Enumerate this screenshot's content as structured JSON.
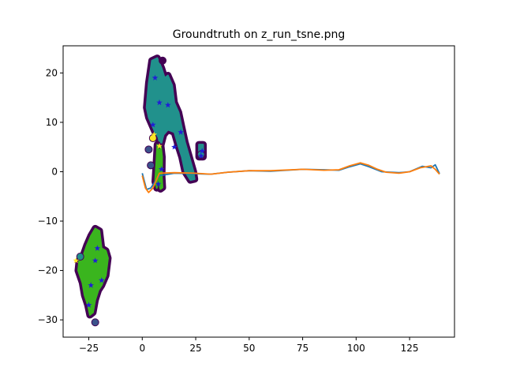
{
  "chart_data": {
    "type": "scatter",
    "title": "Groundtruth on z_run_tsne.png",
    "xlabel": "",
    "ylabel": "",
    "xlim": [
      -37,
      146
    ],
    "ylim": [
      -33.5,
      25.5
    ],
    "xticks": [
      -25,
      0,
      25,
      50,
      75,
      100,
      125
    ],
    "xtick_labels": [
      "−25",
      "0",
      "25",
      "50",
      "75",
      "100",
      "125"
    ],
    "yticks": [
      -30,
      -20,
      -10,
      0,
      10,
      20
    ],
    "ytick_labels": [
      "−30",
      "−20",
      "−10",
      "0",
      "10",
      "20"
    ],
    "grid": false,
    "legend": "none",
    "colors": {
      "outline": "#440154",
      "cluster_teal": "#21918c",
      "cluster_green": "#3ab51e",
      "cluster_blue": "#3b528b",
      "star_blue": "#1f1fd6",
      "star_yellow": "#fde725",
      "line_blue": "#1f77b4",
      "line_orange": "#ff7f0e"
    },
    "clusters": [
      {
        "color": "teal",
        "outline": [
          [
            2,
            13
          ],
          [
            3,
            18
          ],
          [
            4.5,
            22.5
          ],
          [
            7,
            23
          ],
          [
            9,
            21
          ],
          [
            10.5,
            19
          ],
          [
            12,
            19.5
          ],
          [
            14,
            17.5
          ],
          [
            15,
            14
          ],
          [
            17,
            12
          ],
          [
            18.5,
            9
          ],
          [
            20,
            6
          ],
          [
            22,
            3
          ],
          [
            24,
            0
          ],
          [
            24.5,
            -1.5
          ],
          [
            22.5,
            -1.7
          ],
          [
            20,
            0
          ],
          [
            18.5,
            3
          ],
          [
            17,
            5
          ],
          [
            15,
            8
          ],
          [
            12,
            8.5
          ],
          [
            10,
            7.5
          ],
          [
            8.5,
            5
          ],
          [
            7.5,
            7
          ],
          [
            6,
            8
          ],
          [
            4.5,
            9.5
          ],
          [
            3,
            11
          ]
        ]
      },
      {
        "color": "green",
        "outline": [
          [
            7,
            5.5
          ],
          [
            8,
            4
          ],
          [
            8.8,
            5
          ],
          [
            9.3,
            3
          ],
          [
            9.2,
            -1
          ],
          [
            9.5,
            -3.2
          ],
          [
            8.5,
            -3.5
          ],
          [
            7.5,
            -2
          ],
          [
            6.8,
            -3.3
          ],
          [
            6,
            -2
          ],
          [
            6.5,
            1.5
          ]
        ]
      },
      {
        "color": "green",
        "outline": [
          [
            -30,
            -20
          ],
          [
            -29.5,
            -18
          ],
          [
            -28,
            -17.5
          ],
          [
            -26,
            -15
          ],
          [
            -24,
            -13
          ],
          [
            -22,
            -11.5
          ],
          [
            -20,
            -12
          ],
          [
            -19,
            -15.5
          ],
          [
            -17,
            -16
          ],
          [
            -16,
            -17.5
          ],
          [
            -17,
            -21
          ],
          [
            -19,
            -23
          ],
          [
            -20.5,
            -24
          ],
          [
            -22,
            -26
          ],
          [
            -23,
            -28.5
          ],
          [
            -24.5,
            -29
          ],
          [
            -25.5,
            -27
          ],
          [
            -27,
            -25
          ],
          [
            -28,
            -22.5
          ]
        ]
      },
      {
        "color": "teal",
        "outline": [
          [
            26.5,
            5.5
          ],
          [
            28.5,
            5.5
          ],
          [
            28.5,
            3
          ],
          [
            26.5,
            3
          ]
        ]
      }
    ],
    "points": [
      {
        "x": 9.5,
        "y": 22.5,
        "marker": "circle",
        "color": "outline"
      },
      {
        "x": 3,
        "y": 4.5,
        "marker": "circle",
        "color": "blue"
      },
      {
        "x": 4,
        "y": 1.3,
        "marker": "circle",
        "color": "blue"
      },
      {
        "x": 5,
        "y": 6.8,
        "marker": "circle",
        "color": "yellow"
      },
      {
        "x": 27.5,
        "y": 3.5,
        "marker": "circle",
        "color": "teal"
      },
      {
        "x": -29,
        "y": -17.2,
        "marker": "circle",
        "color": "teal"
      },
      {
        "x": -22,
        "y": -30.5,
        "marker": "circle",
        "color": "blue"
      },
      {
        "x": -31,
        "y": -18,
        "marker": "star",
        "color": "yellow"
      },
      {
        "x": 5.5,
        "y": 7.5,
        "marker": "star",
        "color": "yellow"
      },
      {
        "x": 8,
        "y": 5.2,
        "marker": "star",
        "color": "yellow"
      },
      {
        "x": 5,
        "y": 9.5,
        "marker": "star",
        "color": "blue"
      },
      {
        "x": 12,
        "y": 13.5,
        "marker": "star",
        "color": "blue"
      },
      {
        "x": 8,
        "y": 14,
        "marker": "star",
        "color": "blue"
      },
      {
        "x": 15,
        "y": 5,
        "marker": "star",
        "color": "blue"
      },
      {
        "x": 18,
        "y": 8,
        "marker": "star",
        "color": "blue"
      },
      {
        "x": 6,
        "y": 19,
        "marker": "star",
        "color": "blue"
      },
      {
        "x": 28,
        "y": 4.2,
        "marker": "star",
        "color": "blue"
      },
      {
        "x": 27.5,
        "y": 3.2,
        "marker": "star",
        "color": "blue"
      },
      {
        "x": -22,
        "y": -18,
        "marker": "star",
        "color": "blue"
      },
      {
        "x": -19,
        "y": -22,
        "marker": "star",
        "color": "blue"
      },
      {
        "x": -24,
        "y": -23,
        "marker": "star",
        "color": "blue"
      },
      {
        "x": -21,
        "y": -15.5,
        "marker": "star",
        "color": "blue"
      },
      {
        "x": -25,
        "y": -27,
        "marker": "star",
        "color": "blue"
      },
      {
        "x": 9,
        "y": 0.5,
        "marker": "star",
        "color": "blue"
      },
      {
        "x": 7.5,
        "y": -2.5,
        "marker": "star",
        "color": "blue"
      }
    ],
    "series": [
      {
        "color": "line_blue",
        "points": [
          [
            0,
            -0.3
          ],
          [
            2,
            -3.6
          ],
          [
            4,
            -3.3
          ],
          [
            6,
            -2
          ],
          [
            8,
            -0.8
          ],
          [
            15,
            -0.3
          ],
          [
            25,
            -0.4
          ],
          [
            32,
            -0.5
          ],
          [
            40,
            -0.1
          ],
          [
            50,
            0.2
          ],
          [
            60,
            0.1
          ],
          [
            75,
            0.5
          ],
          [
            85,
            0.4
          ],
          [
            92,
            0.3
          ],
          [
            97,
            1.0
          ],
          [
            102,
            1.6
          ],
          [
            106,
            1.0
          ],
          [
            112,
            0
          ],
          [
            120,
            -0.2
          ],
          [
            125,
            0
          ],
          [
            131,
            1.1
          ],
          [
            135,
            0.8
          ],
          [
            137,
            1.4
          ],
          [
            139,
            -0.4
          ]
        ]
      },
      {
        "color": "line_orange",
        "points": [
          [
            0,
            -0.8
          ],
          [
            1.5,
            -3.3
          ],
          [
            3,
            -4.2
          ],
          [
            5,
            -3.3
          ],
          [
            8,
            -0.3
          ],
          [
            15,
            -0.2
          ],
          [
            25,
            -0.3
          ],
          [
            32,
            -0.5
          ],
          [
            40,
            -0.1
          ],
          [
            50,
            0.2
          ],
          [
            60,
            0.2
          ],
          [
            75,
            0.5
          ],
          [
            85,
            0.3
          ],
          [
            92,
            0.4
          ],
          [
            97,
            1.2
          ],
          [
            102,
            1.8
          ],
          [
            106,
            1.3
          ],
          [
            110,
            0.5
          ],
          [
            114,
            -0.1
          ],
          [
            120,
            -0.3
          ],
          [
            125,
            0
          ],
          [
            130,
            0.8
          ],
          [
            135,
            1.2
          ],
          [
            137,
            0.5
          ],
          [
            139,
            -0.5
          ]
        ]
      }
    ]
  }
}
